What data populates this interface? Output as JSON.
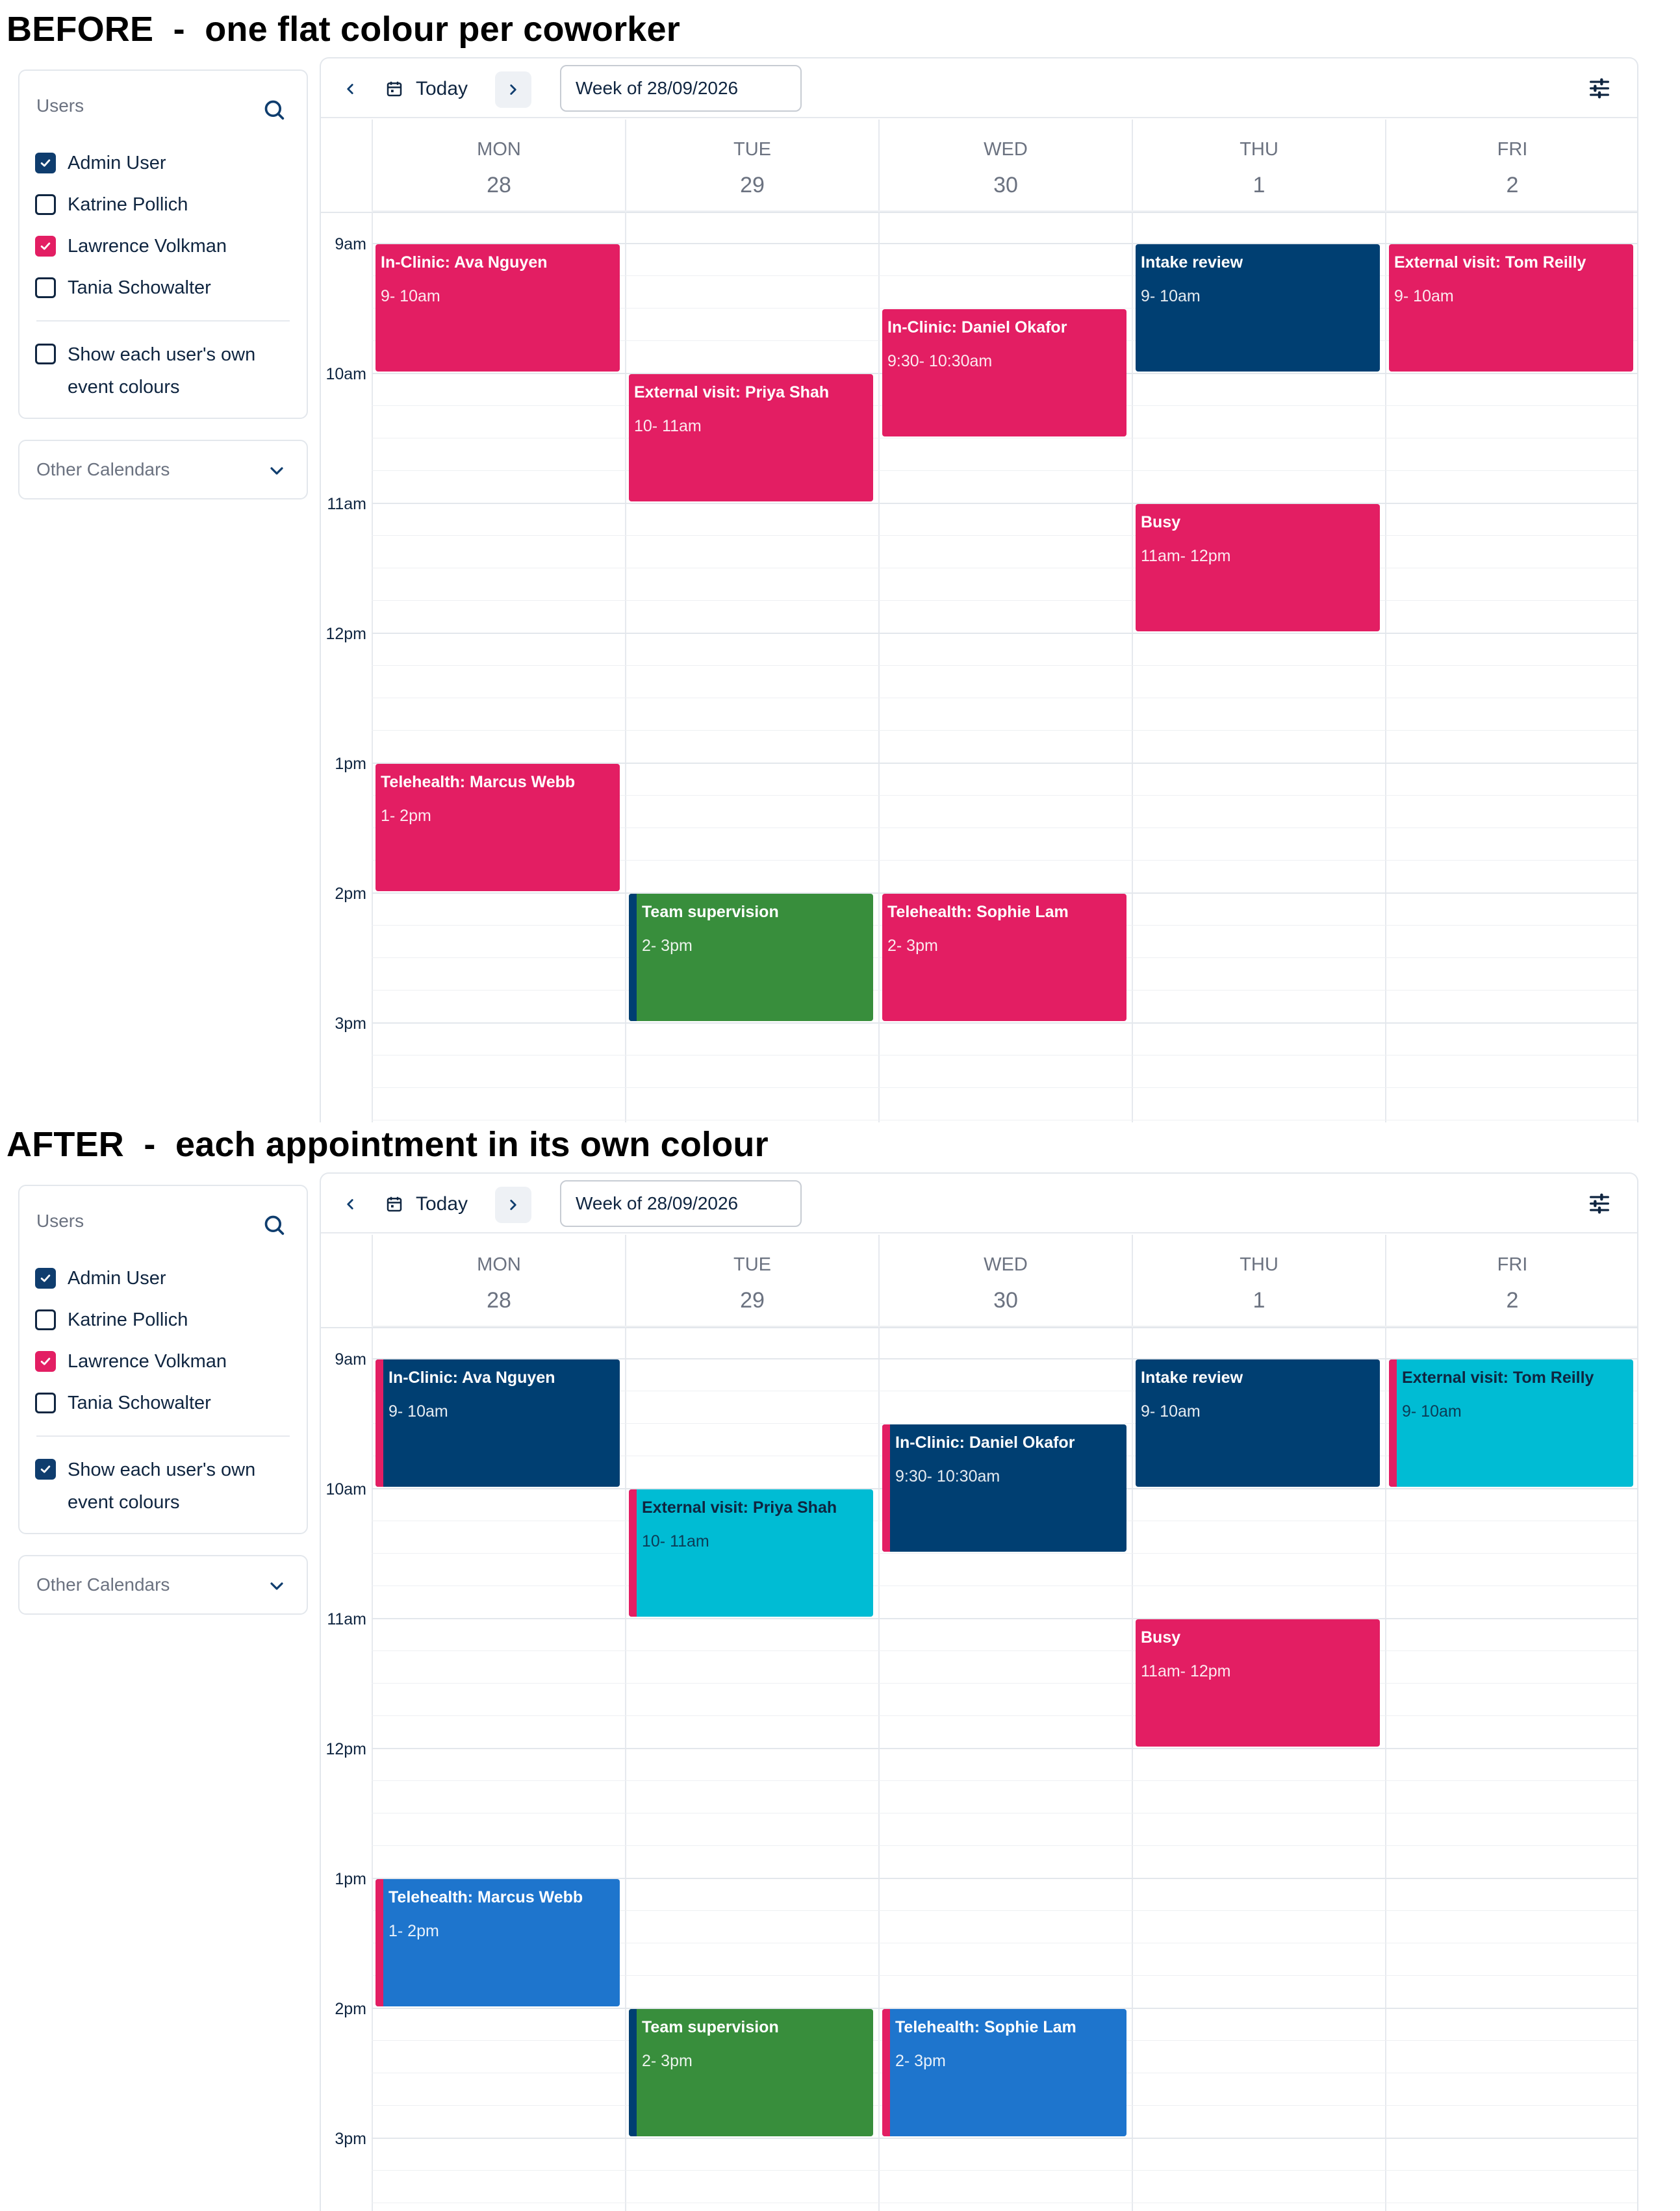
{
  "colors": {
    "pink": "#e31e63",
    "navy": "#003f72",
    "green": "#388e3c",
    "cyan": "#00bcd4",
    "blue": "#1e75cd"
  },
  "sections": [
    {
      "title": "BEFORE  -  one flat colour per coworker",
      "sidebar": {
        "users_title": "Users",
        "users": [
          {
            "label": "Admin User",
            "checked": "navy"
          },
          {
            "label": "Katrine Pollich",
            "checked": "none"
          },
          {
            "label": "Lawrence Volkman",
            "checked": "pink"
          },
          {
            "label": "Tania Schowalter",
            "checked": "none"
          }
        ],
        "own_colours_label": "Show each user's own event colours",
        "own_colours_checked": "none",
        "other_calendars": "Other Calendars"
      },
      "toolbar": {
        "today": "Today",
        "week": "Week of 28/09/2026"
      },
      "days": [
        {
          "name": "MON",
          "num": "28"
        },
        {
          "name": "TUE",
          "num": "29"
        },
        {
          "name": "WED",
          "num": "30"
        },
        {
          "name": "THU",
          "num": "1"
        },
        {
          "name": "FRI",
          "num": "2"
        }
      ],
      "time_labels": [
        "9am",
        "10am",
        "11am",
        "12pm",
        "1pm",
        "2pm",
        "3pm"
      ],
      "events": [
        {
          "day": 0,
          "start": 9,
          "end": 10,
          "title": "In-Clinic: Ava Nguyen",
          "time": "9- 10am",
          "color": "pink",
          "stripe": "none",
          "text": "light"
        },
        {
          "day": 1,
          "start": 10,
          "end": 11,
          "title": "External visit: Priya Shah",
          "time": "10- 11am",
          "color": "pink",
          "stripe": "none",
          "text": "light"
        },
        {
          "day": 2,
          "start": 9.5,
          "end": 10.5,
          "title": "In-Clinic: Daniel Okafor",
          "time": "9:30- 10:30am",
          "color": "pink",
          "stripe": "none",
          "text": "light"
        },
        {
          "day": 3,
          "start": 9,
          "end": 10,
          "title": "Intake review",
          "time": "9- 10am",
          "color": "navy",
          "stripe": "none",
          "text": "light"
        },
        {
          "day": 4,
          "start": 9,
          "end": 10,
          "title": "External visit: Tom Reilly",
          "time": "9- 10am",
          "color": "pink",
          "stripe": "none",
          "text": "light"
        },
        {
          "day": 3,
          "start": 11,
          "end": 12,
          "title": "Busy",
          "time": "11am- 12pm",
          "color": "pink",
          "stripe": "none",
          "text": "light"
        },
        {
          "day": 0,
          "start": 13,
          "end": 14,
          "title": "Telehealth: Marcus Webb",
          "time": "1- 2pm",
          "color": "pink",
          "stripe": "none",
          "text": "light"
        },
        {
          "day": 1,
          "start": 14,
          "end": 15,
          "title": "Team supervision",
          "time": "2- 3pm",
          "color": "green",
          "stripe": "navy",
          "text": "light"
        },
        {
          "day": 2,
          "start": 14,
          "end": 15,
          "title": "Telehealth: Sophie Lam",
          "time": "2- 3pm",
          "color": "pink",
          "stripe": "none",
          "text": "light"
        }
      ]
    },
    {
      "title": "AFTER  -  each appointment in its own colour",
      "sidebar": {
        "users_title": "Users",
        "users": [
          {
            "label": "Admin User",
            "checked": "navy"
          },
          {
            "label": "Katrine Pollich",
            "checked": "none"
          },
          {
            "label": "Lawrence Volkman",
            "checked": "pink"
          },
          {
            "label": "Tania Schowalter",
            "checked": "none"
          }
        ],
        "own_colours_label": "Show each user's own event colours",
        "own_colours_checked": "navy",
        "other_calendars": "Other Calendars"
      },
      "toolbar": {
        "today": "Today",
        "week": "Week of 28/09/2026"
      },
      "days": [
        {
          "name": "MON",
          "num": "28"
        },
        {
          "name": "TUE",
          "num": "29"
        },
        {
          "name": "WED",
          "num": "30"
        },
        {
          "name": "THU",
          "num": "1"
        },
        {
          "name": "FRI",
          "num": "2"
        }
      ],
      "time_labels": [
        "9am",
        "10am",
        "11am",
        "12pm",
        "1pm",
        "2pm",
        "3pm"
      ],
      "events": [
        {
          "day": 0,
          "start": 9,
          "end": 10,
          "title": "In-Clinic: Ava Nguyen",
          "time": "9- 10am",
          "color": "navy",
          "stripe": "pink",
          "text": "light"
        },
        {
          "day": 1,
          "start": 10,
          "end": 11,
          "title": "External visit: Priya Shah",
          "time": "10- 11am",
          "color": "cyan",
          "stripe": "pink",
          "text": "dark"
        },
        {
          "day": 2,
          "start": 9.5,
          "end": 10.5,
          "title": "In-Clinic: Daniel Okafor",
          "time": "9:30- 10:30am",
          "color": "navy",
          "stripe": "pink",
          "text": "light"
        },
        {
          "day": 3,
          "start": 9,
          "end": 10,
          "title": "Intake review",
          "time": "9- 10am",
          "color": "navy",
          "stripe": "none",
          "text": "light"
        },
        {
          "day": 4,
          "start": 9,
          "end": 10,
          "title": "External visit: Tom Reilly",
          "time": "9- 10am",
          "color": "cyan",
          "stripe": "pink",
          "text": "dark"
        },
        {
          "day": 3,
          "start": 11,
          "end": 12,
          "title": "Busy",
          "time": "11am- 12pm",
          "color": "pink",
          "stripe": "none",
          "text": "light"
        },
        {
          "day": 0,
          "start": 13,
          "end": 14,
          "title": "Telehealth: Marcus Webb",
          "time": "1- 2pm",
          "color": "blue",
          "stripe": "pink",
          "text": "light"
        },
        {
          "day": 1,
          "start": 14,
          "end": 15,
          "title": "Team supervision",
          "time": "2- 3pm",
          "color": "green",
          "stripe": "navy",
          "text": "light"
        },
        {
          "day": 2,
          "start": 14,
          "end": 15,
          "title": "Telehealth: Sophie Lam",
          "time": "2- 3pm",
          "color": "blue",
          "stripe": "pink",
          "text": "light"
        }
      ]
    }
  ]
}
